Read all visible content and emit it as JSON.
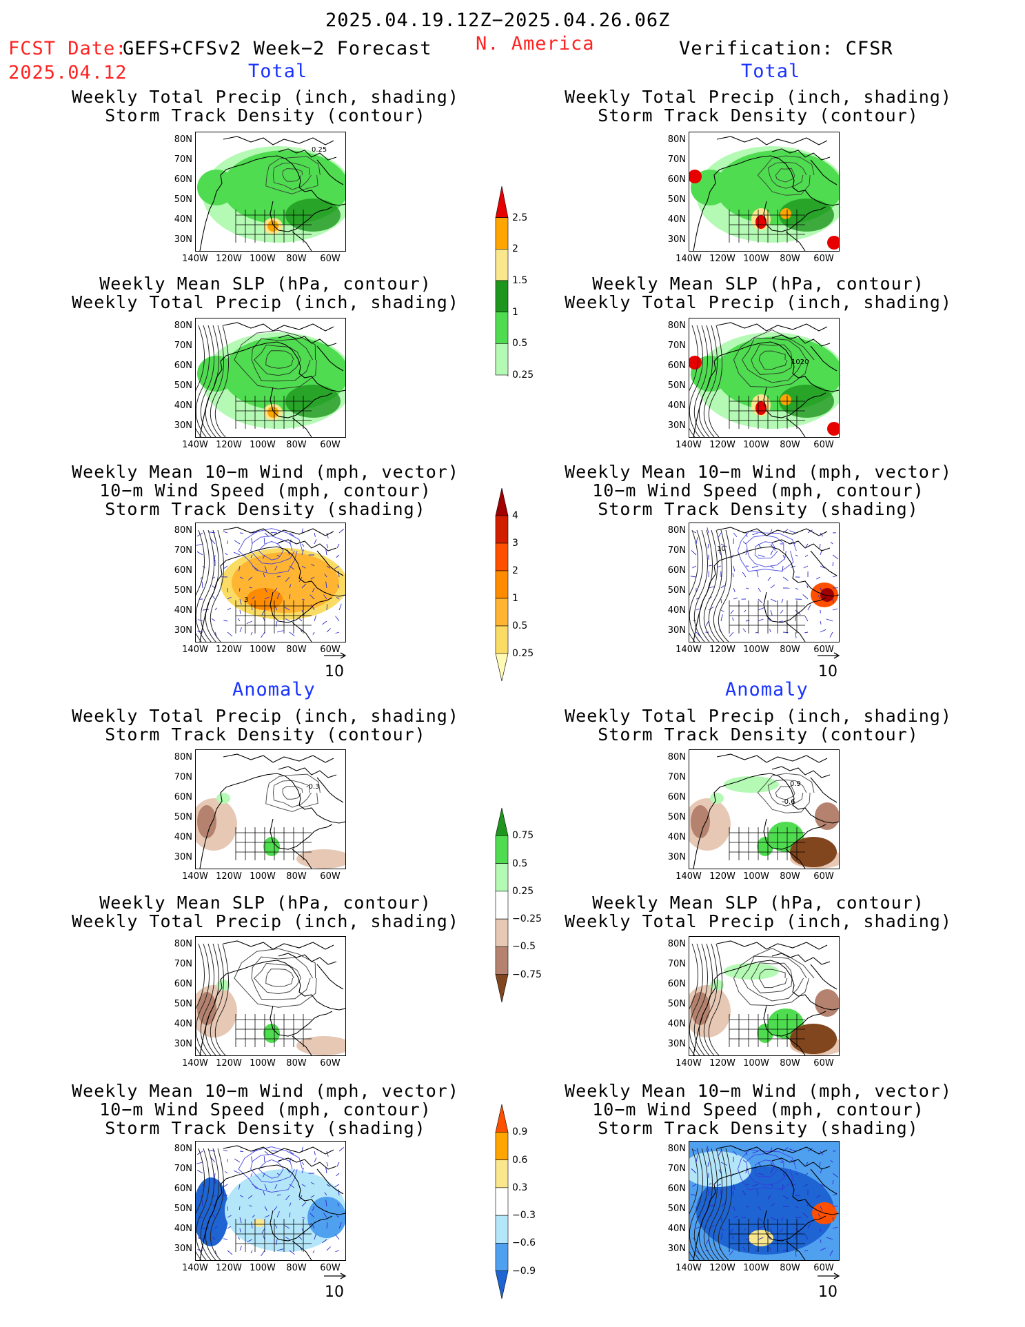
{
  "header": {
    "period": "2025.04.19.12Z−2025.04.26.06Z",
    "fcst_label": "FCST Date:",
    "fcst_model": "GEFS+CFSv2 Week−2 Forecast",
    "fcst_date": "2025.04.12",
    "region": "N. America",
    "verification": "Verification: CFSR"
  },
  "sections": {
    "total": "Total",
    "anomaly": "Anomaly"
  },
  "panel_titles": {
    "precip_storm": "Weekly Total Precip (inch, shading)\nStorm Track Density (contour)",
    "slp_precip": "Weekly Mean SLP (hPa, contour)\nWeekly Total Precip (inch, shading)",
    "wind_storm": "Weekly Mean 10−m Wind (mph, vector)\n10−m Wind Speed (mph, contour)\nStorm Track Density (shading)"
  },
  "axes": {
    "lat_labels": [
      "80N",
      "70N",
      "60N",
      "50N",
      "40N",
      "30N"
    ],
    "lon_labels": [
      "140W",
      "120W",
      "100W",
      "80W",
      "60W"
    ]
  },
  "vector_ref": "10",
  "map_annotations": {
    "fc_precip_total": "0.25",
    "vf_slp_total": "1020",
    "vf_wind_total": "10",
    "fc_wind_total": "3",
    "fc_precip_anom": "-0.3",
    "vf_precip_anom_a": "0.9",
    "vf_precip_anom_b": "-0.6"
  },
  "colorbars": [
    {
      "name": "precip-total",
      "colors": [
        "#b4fab4",
        "#50dc50",
        "#1e961e",
        "#fae68c",
        "#ffa500",
        "#e60000"
      ],
      "labels": [
        "0.25",
        "0.5",
        "1",
        "1.5",
        "2",
        "2.5"
      ]
    },
    {
      "name": "storm-total",
      "colors": [
        "#fffab4",
        "#fadc64",
        "#ffb432",
        "#ff8c00",
        "#ff5000",
        "#d21e00",
        "#a00000"
      ],
      "labels": [
        "0.25",
        "0.5",
        "1",
        "2",
        "3",
        "4"
      ]
    },
    {
      "name": "precip-anom",
      "colors": [
        "#82461e",
        "#b4826e",
        "#e6c8b4",
        "#ffffff",
        "#b4fab4",
        "#50dc50",
        "#1e961e"
      ],
      "labels": [
        "−0.75",
        "−0.5",
        "−0.25",
        "0.25",
        "0.5",
        "0.75"
      ]
    },
    {
      "name": "storm-anom",
      "colors": [
        "#1e64d2",
        "#50a0f0",
        "#b4e6fa",
        "#ffffff",
        "#fae68c",
        "#ffa500",
        "#ff5000"
      ],
      "labels": [
        "−0.9",
        "−0.6",
        "−0.3",
        "0.3",
        "0.6",
        "0.9"
      ]
    }
  ],
  "colors": {
    "header_red": "#ff2222",
    "section_blue": "#1a33ff"
  }
}
